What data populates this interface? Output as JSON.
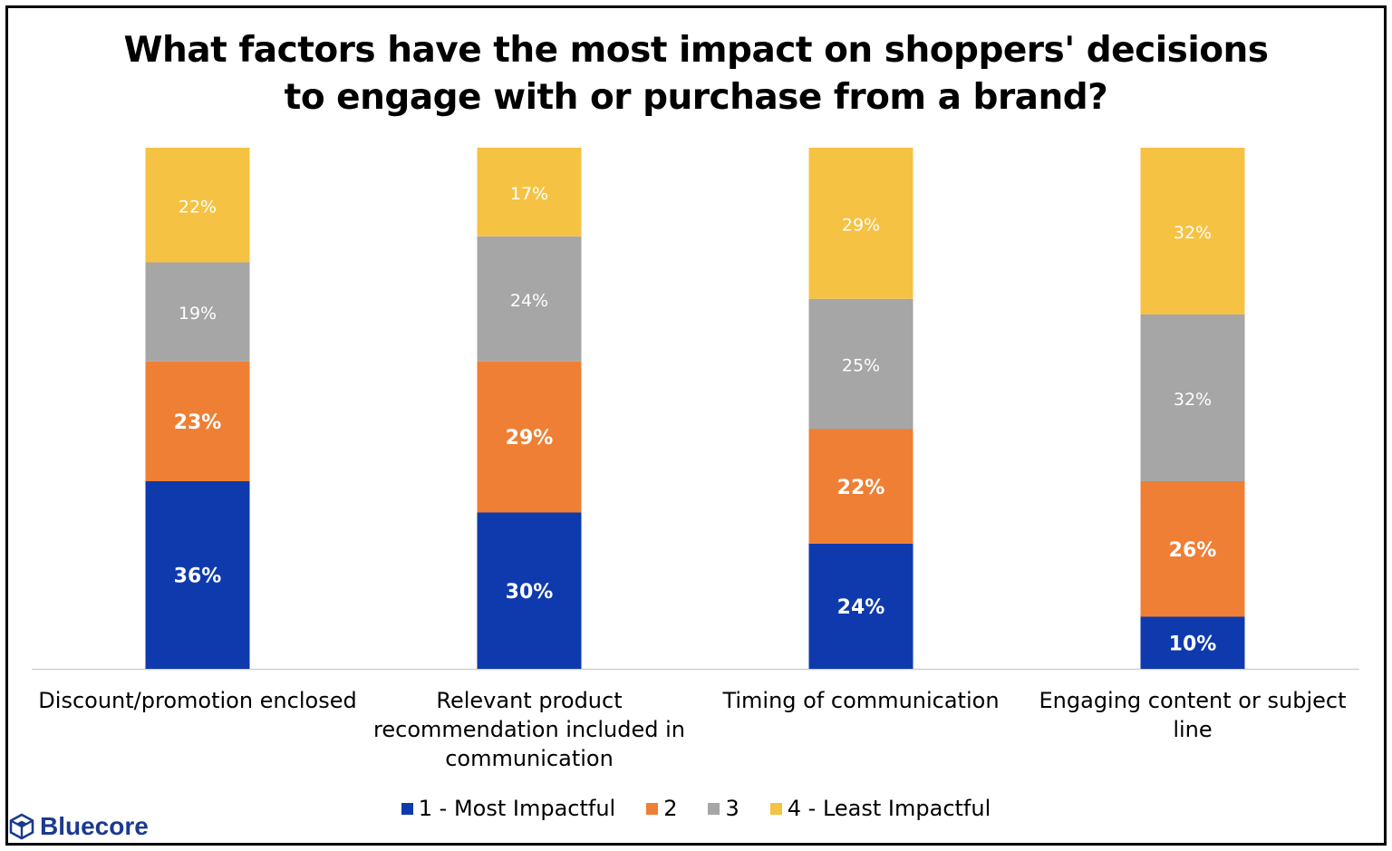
{
  "title_lines": [
    "What factors have the most impact on shoppers' decisions",
    "to engage with or purchase from a brand?"
  ],
  "brand": {
    "name": "Bluecore",
    "icon": "cube-icon"
  },
  "chart_data": {
    "type": "bar",
    "stacked": true,
    "categories": [
      "Discount/promotion enclosed",
      "Relevant product recommendation included in communication",
      "Timing of communication",
      "Engaging content or subject line"
    ],
    "category_label_lines": [
      [
        "Discount/promotion enclosed"
      ],
      [
        "Relevant product",
        "recommendation included in",
        "communication"
      ],
      [
        "Timing of communication"
      ],
      [
        "Engaging content or subject",
        "line"
      ]
    ],
    "series": [
      {
        "name": "1 - Most Impactful",
        "color": "#0e3aad",
        "values": [
          36,
          30,
          24,
          10
        ],
        "labels": [
          "36%",
          "30%",
          "24%",
          "10%"
        ]
      },
      {
        "name": "2",
        "color": "#ef7f34",
        "values": [
          23,
          29,
          22,
          26
        ],
        "labels": [
          "23%",
          "29%",
          "22%",
          "26%"
        ]
      },
      {
        "name": "3",
        "color": "#a6a6a6",
        "values": [
          19,
          24,
          25,
          32
        ],
        "labels": [
          "19%",
          "24%",
          "25%",
          "32%"
        ]
      },
      {
        "name": "4 - Least Impactful",
        "color": "#f6c244",
        "values": [
          22,
          17,
          29,
          32
        ],
        "labels": [
          "22%",
          "17%",
          "29%",
          "32%"
        ]
      }
    ],
    "ylim": [
      0,
      100
    ],
    "grid": false,
    "legend_position": "bottom"
  }
}
